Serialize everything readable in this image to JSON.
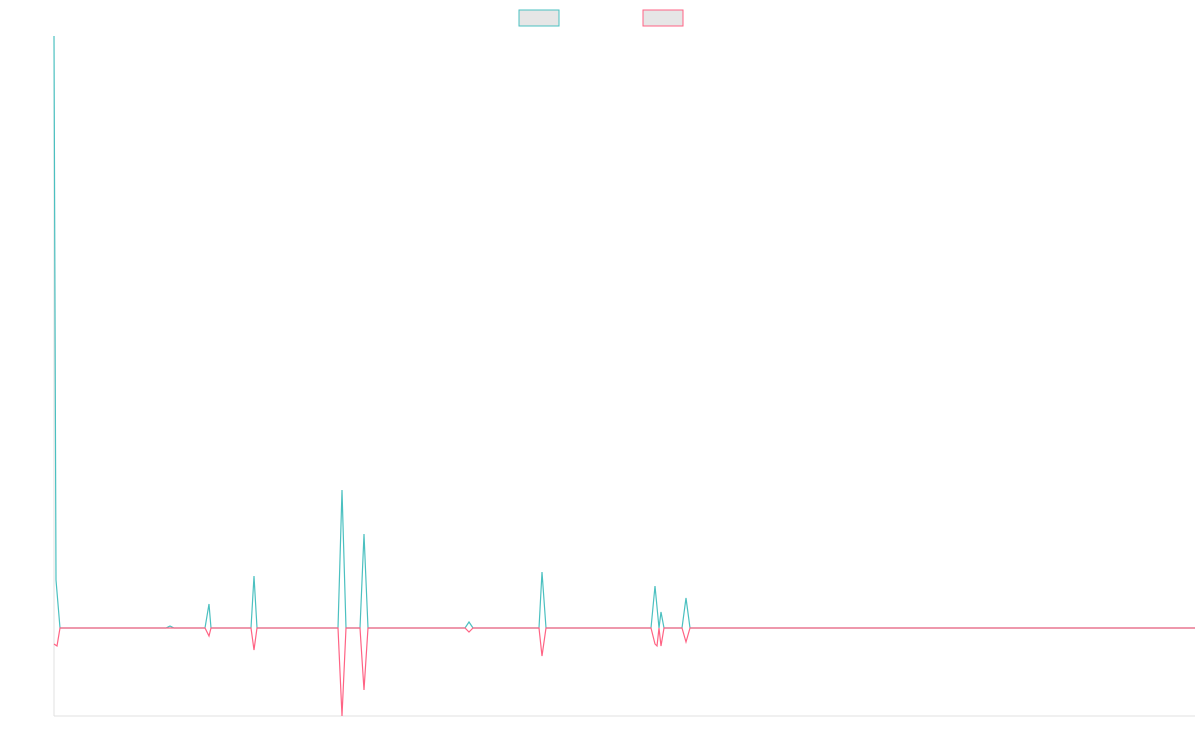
{
  "chart_data": {
    "type": "line",
    "xlim": [
      0,
      1141
    ],
    "ylim": [
      -22,
      148
    ],
    "grid": false,
    "legend": "top",
    "series": [
      {
        "color": "#4bc0c0",
        "x": [
          0,
          2,
          6,
          112,
          116,
          120,
          151,
          155,
          157,
          197,
          200,
          203,
          284,
          288,
          292,
          306,
          310,
          314,
          411,
          415,
          419,
          485,
          488,
          492,
          597,
          601,
          605,
          607,
          610,
          628,
          632,
          636,
          1141
        ],
        "values": [
          148,
          12,
          0,
          0,
          0.5,
          0,
          0,
          6,
          0,
          0,
          13,
          0,
          0,
          34.5,
          0,
          0,
          23.5,
          0,
          0,
          1.5,
          0,
          0,
          14,
          0,
          0,
          10.5,
          0,
          4,
          0,
          0,
          7.5,
          0,
          0
        ]
      },
      {
        "color": "#ff6384",
        "x": [
          0,
          3,
          6,
          151,
          155,
          157,
          197,
          200,
          203,
          284,
          288,
          292,
          306,
          310,
          314,
          411,
          415,
          419,
          485,
          488,
          492,
          597,
          601,
          603,
          605,
          607,
          610,
          628,
          632,
          636,
          1141
        ],
        "values": [
          -4,
          -4.5,
          0,
          0,
          -2,
          0,
          0,
          -5.5,
          0,
          0,
          -22,
          0,
          0,
          -15.5,
          0,
          0,
          -1,
          0,
          0,
          -7,
          0,
          0,
          -4,
          -4.5,
          0,
          -4.5,
          0,
          0,
          -3.5,
          0,
          0
        ]
      }
    ]
  }
}
